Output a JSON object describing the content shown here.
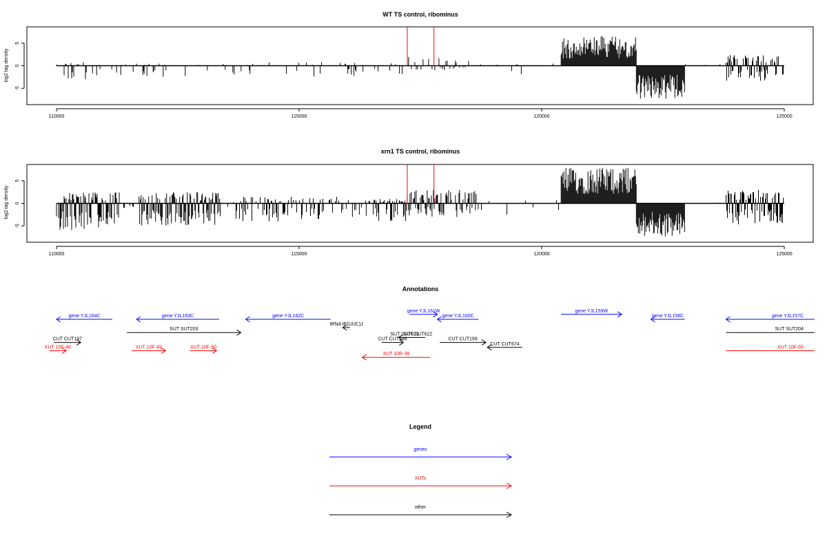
{
  "chart_data": [
    {
      "type": "bar",
      "title": "WT TS control, ribominus",
      "ylabel": "log2 tag density",
      "xlim": [
        110000,
        125000
      ],
      "ylim": [
        -8,
        8
      ],
      "xticks": [
        110000,
        115000,
        120000,
        125000
      ],
      "yticks": [
        -5,
        0,
        5
      ],
      "highlight_color": "#ff0000",
      "highlights": [
        {
          "x": 117230,
          "value": 8.5
        },
        {
          "x": 117780,
          "value": 8.5
        }
      ],
      "regions": [
        {
          "start": 110000,
          "end": 110600,
          "pos": 0.8,
          "neg": -3.5,
          "density": 0.35
        },
        {
          "start": 110600,
          "end": 112000,
          "pos": 0.5,
          "neg": -2.5,
          "density": 0.18
        },
        {
          "start": 112000,
          "end": 114000,
          "pos": 0.5,
          "neg": -2.5,
          "density": 0.12
        },
        {
          "start": 114000,
          "end": 117200,
          "pos": 0.8,
          "neg": -2.5,
          "density": 0.12
        },
        {
          "start": 117200,
          "end": 118500,
          "pos": 2.0,
          "neg": -1.0,
          "density": 0.25
        },
        {
          "start": 118500,
          "end": 120400,
          "pos": 0.5,
          "neg": -2.0,
          "density": 0.06
        },
        {
          "start": 120400,
          "end": 121950,
          "pos": 6.5,
          "neg": 0,
          "density": 1.0
        },
        {
          "start": 121950,
          "end": 122950,
          "pos": 0,
          "neg": -7.5,
          "density": 1.0
        },
        {
          "start": 122950,
          "end": 123800,
          "pos": 0.4,
          "neg": -0.5,
          "density": 0.02
        },
        {
          "start": 123800,
          "end": 125000,
          "pos": 2.5,
          "neg": -3.5,
          "density": 0.6
        }
      ]
    },
    {
      "type": "bar",
      "title": "xrn1 TS control, ribominus",
      "ylabel": "log2 tag density",
      "xlim": [
        110000,
        125000
      ],
      "ylim": [
        -8,
        8
      ],
      "xticks": [
        110000,
        115000,
        120000,
        125000
      ],
      "yticks": [
        -5,
        0,
        5
      ],
      "highlight_color": "#ff0000",
      "highlights": [
        {
          "x": 117230,
          "value": 8.5
        },
        {
          "x": 117780,
          "value": 8.5
        }
      ],
      "regions": [
        {
          "start": 110000,
          "end": 111300,
          "pos": 2.5,
          "neg": -6.0,
          "density": 0.8
        },
        {
          "start": 111300,
          "end": 111700,
          "pos": 0.8,
          "neg": -2.0,
          "density": 0.15
        },
        {
          "start": 111700,
          "end": 113400,
          "pos": 2.5,
          "neg": -5.0,
          "density": 0.85
        },
        {
          "start": 113400,
          "end": 113700,
          "pos": 0.6,
          "neg": -1.5,
          "density": 0.1
        },
        {
          "start": 113700,
          "end": 115900,
          "pos": 1.5,
          "neg": -4.0,
          "density": 0.5
        },
        {
          "start": 115900,
          "end": 116500,
          "pos": 0.8,
          "neg": -3.0,
          "density": 0.3
        },
        {
          "start": 116500,
          "end": 117200,
          "pos": 1.0,
          "neg": -4.5,
          "density": 0.7
        },
        {
          "start": 117200,
          "end": 118700,
          "pos": 3.0,
          "neg": -3.0,
          "density": 0.6
        },
        {
          "start": 118700,
          "end": 120400,
          "pos": 1.0,
          "neg": -2.5,
          "density": 0.1
        },
        {
          "start": 120400,
          "end": 121950,
          "pos": 8.0,
          "neg": 0,
          "density": 1.0
        },
        {
          "start": 121950,
          "end": 122950,
          "pos": 0,
          "neg": -7.5,
          "density": 1.0
        },
        {
          "start": 122950,
          "end": 123800,
          "pos": 0.3,
          "neg": -0.3,
          "density": 0.01
        },
        {
          "start": 123800,
          "end": 125000,
          "pos": 3.0,
          "neg": -5.0,
          "density": 0.9
        }
      ]
    }
  ],
  "annotations": {
    "title": "Annotations",
    "features": [
      {
        "label": "gene YJL164C",
        "color": "#0000ff",
        "dir": "left",
        "start": 110000,
        "end": 111150,
        "row": 0
      },
      {
        "label": "gene YJL163C",
        "color": "#0000ff",
        "dir": "left",
        "start": 111650,
        "end": 113350,
        "row": 0
      },
      {
        "label": "gene YJL162C",
        "color": "#0000ff",
        "dir": "left",
        "start": 113900,
        "end": 115650,
        "row": 0
      },
      {
        "label": "gene YJL161W",
        "color": "#0000ff",
        "dir": "right",
        "start": 117280,
        "end": 117850,
        "row": -0.6
      },
      {
        "label": "gene YJL160C",
        "color": "#0000ff",
        "dir": "left",
        "start": 117850,
        "end": 118700,
        "row": 0
      },
      {
        "label": "gene YJL159W",
        "color": "#0000ff",
        "dir": "right",
        "start": 120400,
        "end": 121650,
        "row": -0.6
      },
      {
        "label": "gene YJL158C",
        "color": "#0000ff",
        "dir": "left",
        "start": 122250,
        "end": 122950,
        "row": 0
      },
      {
        "label": "gene YJL157C",
        "color": "#0000ff",
        "dir": "left",
        "start": 123800,
        "end": 125650,
        "row": 0
      },
      {
        "label": "tRNA tE(UUC)J",
        "color": "#000000",
        "dir": "left",
        "start": 115900,
        "end": 116050,
        "row": 1.0
      },
      {
        "label": "SUT SUT203",
        "color": "#000000",
        "dir": "right",
        "start": 111450,
        "end": 113800,
        "row": 1.6
      },
      {
        "label": "SUT SUT204",
        "color": "#000000",
        "dir": "none",
        "start": 123800,
        "end": 125650,
        "row": 1.6
      },
      {
        "label": "SUT SUT621",
        "color": "#000000",
        "dir": "left",
        "start": 117050,
        "end": 117300,
        "row": 2.2
      },
      {
        "label": "SUT SUT622",
        "color": "#000000",
        "dir": "none",
        "start": 117300,
        "end": 117600,
        "row": 2.2
      },
      {
        "label": "CUT CUT197",
        "color": "#000000",
        "dir": "right",
        "start": 109950,
        "end": 110500,
        "row": 2.8
      },
      {
        "label": "CUT CUT198",
        "color": "#000000",
        "dir": "right",
        "start": 116700,
        "end": 117150,
        "row": 2.8
      },
      {
        "label": "CUT CUT199",
        "color": "#000000",
        "dir": "right",
        "start": 117900,
        "end": 118850,
        "row": 2.8
      },
      {
        "label": "CUT CUT674",
        "color": "#000000",
        "dir": "left",
        "start": 118880,
        "end": 119600,
        "row": 3.4
      },
      {
        "label": "XUT 10F-48",
        "color": "#ff0000",
        "dir": "right",
        "start": 109850,
        "end": 110200,
        "row": 3.8
      },
      {
        "label": "XUT 10F-49",
        "color": "#ff0000",
        "dir": "right",
        "start": 111550,
        "end": 112250,
        "row": 3.8
      },
      {
        "label": "XUT 10F-50",
        "color": "#ff0000",
        "dir": "right",
        "start": 112750,
        "end": 113300,
        "row": 3.8
      },
      {
        "label": "XUT 10R-39",
        "color": "#ff0000",
        "dir": "left",
        "start": 116300,
        "end": 117700,
        "row": 4.6
      },
      {
        "label": "XUT 10F-55",
        "color": "#ff0000",
        "dir": "none",
        "start": 123800,
        "end": 125650,
        "row": 3.8
      }
    ]
  },
  "legend": {
    "title": "Legend",
    "items": [
      {
        "label": "genes",
        "color": "#0000ff"
      },
      {
        "label": "XUTs",
        "color": "#ff0000"
      },
      {
        "label": "other",
        "color": "#000000"
      }
    ]
  }
}
